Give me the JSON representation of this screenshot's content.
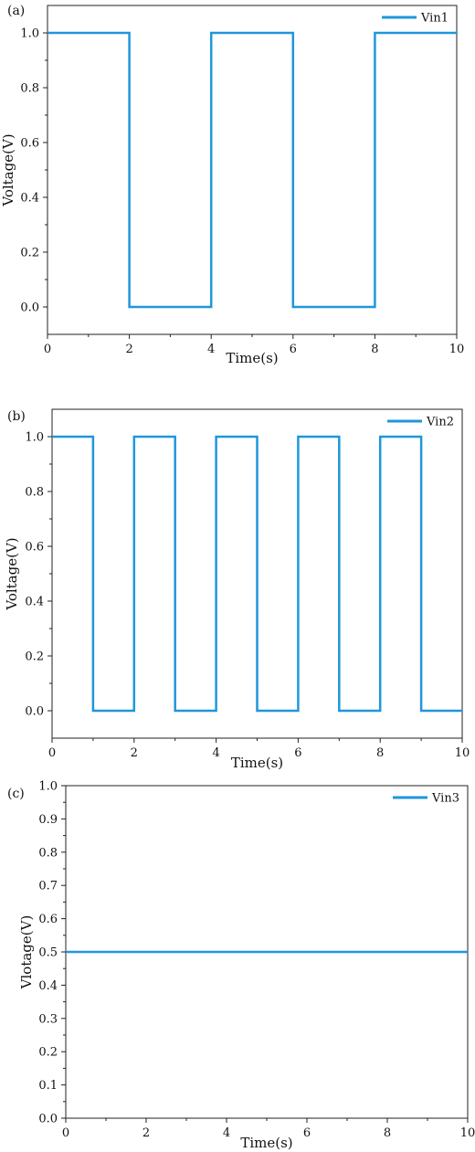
{
  "chart_data": [
    {
      "type": "line",
      "panel_label": "(a)",
      "title": "",
      "xlabel": "Time(s)",
      "ylabel": "Voltage(V)",
      "xlim": [
        0,
        10
      ],
      "ylim": [
        -0.1,
        1.1
      ],
      "xticks": [
        0,
        2,
        4,
        6,
        8,
        10
      ],
      "yticks": [
        0.0,
        0.2,
        0.4,
        0.6,
        0.8,
        1.0
      ],
      "xtick_labels": [
        "0",
        "2",
        "4",
        "6",
        "8",
        "10"
      ],
      "ytick_labels": [
        "0.0",
        "0.2",
        "0.4",
        "0.6",
        "0.8",
        "1.0"
      ],
      "grid": false,
      "legend_position": "top-right",
      "series": [
        {
          "name": "Vin1",
          "color": "#1f96dc",
          "x": [
            0,
            2,
            2,
            4,
            4,
            6,
            6,
            8,
            8,
            10
          ],
          "y": [
            1,
            1,
            0,
            0,
            1,
            1,
            0,
            0,
            1,
            1
          ]
        }
      ]
    },
    {
      "type": "line",
      "panel_label": "(b)",
      "title": "",
      "xlabel": "Time(s)",
      "ylabel": "Voltage(V)",
      "xlim": [
        0,
        10
      ],
      "ylim": [
        -0.1,
        1.1
      ],
      "xticks": [
        0,
        2,
        4,
        6,
        8,
        10
      ],
      "yticks": [
        0.0,
        0.2,
        0.4,
        0.6,
        0.8,
        1.0
      ],
      "xtick_labels": [
        "0",
        "2",
        "4",
        "6",
        "8",
        "10"
      ],
      "ytick_labels": [
        "0.0",
        "0.2",
        "0.4",
        "0.6",
        "0.8",
        "1.0"
      ],
      "grid": false,
      "legend_position": "top-right",
      "series": [
        {
          "name": "Vin2",
          "color": "#1f96dc",
          "x": [
            0,
            1,
            1,
            2,
            2,
            3,
            3,
            4,
            4,
            5,
            5,
            6,
            6,
            7,
            7,
            8,
            8,
            9,
            9,
            10
          ],
          "y": [
            1,
            1,
            0,
            0,
            1,
            1,
            0,
            0,
            1,
            1,
            0,
            0,
            1,
            1,
            0,
            0,
            1,
            1,
            0,
            0
          ]
        }
      ]
    },
    {
      "type": "line",
      "panel_label": "(c)",
      "title": "",
      "xlabel": "Time(s)",
      "ylabel": "Vlotage(V)",
      "xlim": [
        0,
        10
      ],
      "ylim": [
        0,
        1
      ],
      "xticks": [
        0,
        2,
        4,
        6,
        8,
        10
      ],
      "yticks": [
        0.0,
        0.1,
        0.2,
        0.3,
        0.4,
        0.5,
        0.6,
        0.7,
        0.8,
        0.9,
        1.0
      ],
      "xtick_labels": [
        "0",
        "2",
        "4",
        "6",
        "8",
        "10"
      ],
      "ytick_labels": [
        "0.0",
        "0.1",
        "0.2",
        "0.3",
        "0.4",
        "0.5",
        "0.6",
        "0.7",
        "0.8",
        "0.9",
        "1.0"
      ],
      "grid": false,
      "legend_position": "top-right",
      "series": [
        {
          "name": "Vin3",
          "color": "#1f96dc",
          "x": [
            0,
            10
          ],
          "y": [
            0.5,
            0.5
          ]
        }
      ]
    }
  ]
}
